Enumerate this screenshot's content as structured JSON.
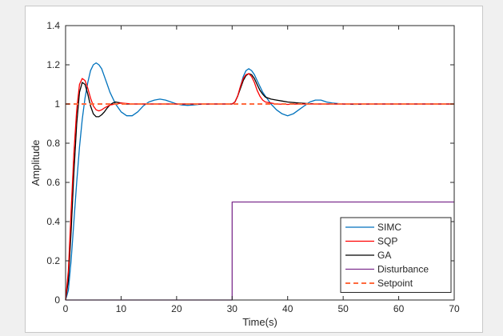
{
  "chart_data": {
    "type": "line",
    "title": "",
    "xlabel": "Time(s)",
    "ylabel": "Amplitude",
    "xlim": [
      0,
      70
    ],
    "ylim": [
      0,
      1.4
    ],
    "xticks": [
      0,
      10,
      20,
      30,
      40,
      50,
      60,
      70
    ],
    "yticks": [
      0,
      0.2,
      0.4,
      0.6,
      0.8,
      1,
      1.2,
      1.4
    ],
    "xtick_labels": [
      "0",
      "10",
      "20",
      "30",
      "40",
      "50",
      "60",
      "70"
    ],
    "ytick_labels": [
      "0",
      "0.2",
      "0.4",
      "0.6",
      "0.8",
      "1",
      "1.2",
      "1.4"
    ],
    "grid": false,
    "legend": {
      "position": "bottom-right"
    },
    "series": [
      {
        "name": "SIMC",
        "color": "#0072bd",
        "style": "solid",
        "x": [
          0,
          0.5,
          1,
          1.5,
          2,
          2.5,
          3,
          3.5,
          4,
          4.5,
          5,
          5.5,
          6,
          6.5,
          7,
          7.5,
          8,
          9,
          10,
          11,
          12,
          13,
          14,
          15,
          16,
          17,
          18,
          19,
          20,
          21,
          22,
          23,
          24,
          26,
          28,
          30,
          30.5,
          31,
          31.5,
          32,
          32.5,
          33,
          33.5,
          34,
          34.5,
          35,
          35.5,
          36,
          37,
          38,
          39,
          40,
          41,
          42,
          43,
          44,
          45,
          46,
          47,
          48,
          50,
          52,
          55,
          60,
          65,
          70
        ],
        "y": [
          0,
          0.05,
          0.2,
          0.4,
          0.6,
          0.78,
          0.92,
          1.03,
          1.11,
          1.17,
          1.2,
          1.21,
          1.2,
          1.18,
          1.14,
          1.1,
          1.06,
          1.0,
          0.96,
          0.94,
          0.94,
          0.96,
          0.99,
          1.01,
          1.02,
          1.025,
          1.02,
          1.01,
          1.0,
          0.995,
          0.993,
          0.995,
          0.998,
          1.0,
          1.0,
          1.0,
          1.01,
          1.04,
          1.09,
          1.14,
          1.17,
          1.18,
          1.17,
          1.15,
          1.12,
          1.09,
          1.06,
          1.04,
          1.0,
          0.97,
          0.95,
          0.94,
          0.95,
          0.97,
          0.99,
          1.01,
          1.02,
          1.02,
          1.01,
          1.005,
          1.0,
          0.998,
          1.0,
          1.0,
          1.0,
          1.0
        ]
      },
      {
        "name": "SQP",
        "color": "#ff0000",
        "style": "solid",
        "x": [
          0,
          0.5,
          1,
          1.5,
          2,
          2.5,
          3,
          3.5,
          4,
          4.5,
          5,
          5.5,
          6,
          6.5,
          7,
          8,
          9,
          10,
          12,
          15,
          20,
          25,
          30,
          30.5,
          31,
          31.5,
          32,
          32.5,
          33,
          33.5,
          34,
          34.5,
          35,
          35.5,
          36,
          37,
          38,
          40,
          42,
          45,
          50,
          55,
          60,
          65,
          70
        ],
        "y": [
          0,
          0.15,
          0.45,
          0.75,
          0.97,
          1.1,
          1.13,
          1.12,
          1.08,
          1.03,
          0.99,
          0.97,
          0.965,
          0.97,
          0.98,
          0.995,
          1.0,
          1.005,
          1.0,
          1.0,
          1.0,
          1.0,
          1.0,
          1.01,
          1.04,
          1.09,
          1.13,
          1.15,
          1.155,
          1.14,
          1.11,
          1.07,
          1.04,
          1.02,
          1.01,
          1.005,
          1.0,
          0.998,
          1.0,
          1.0,
          1.0,
          1.0,
          1.0,
          1.0,
          1.0
        ]
      },
      {
        "name": "GA",
        "color": "#000000",
        "style": "solid",
        "x": [
          0,
          0.5,
          1,
          1.5,
          2,
          2.5,
          3,
          3.5,
          4,
          4.5,
          5,
          5.5,
          6,
          6.5,
          7,
          7.5,
          8,
          8.5,
          9,
          10,
          11,
          12,
          15,
          20,
          25,
          30,
          30.5,
          31,
          31.5,
          32,
          32.5,
          33,
          33.5,
          34,
          34.5,
          35,
          35.5,
          36,
          37,
          38,
          39,
          40,
          42,
          45,
          50,
          55,
          60,
          65,
          70
        ],
        "y": [
          0,
          0.1,
          0.35,
          0.65,
          0.9,
          1.06,
          1.11,
          1.1,
          1.05,
          0.99,
          0.95,
          0.935,
          0.935,
          0.945,
          0.96,
          0.98,
          0.995,
          1.005,
          1.01,
          1.005,
          1.0,
          1.0,
          1.0,
          1.0,
          1.0,
          1.0,
          1.01,
          1.04,
          1.08,
          1.12,
          1.145,
          1.155,
          1.15,
          1.13,
          1.1,
          1.07,
          1.05,
          1.035,
          1.025,
          1.02,
          1.015,
          1.01,
          1.005,
          1.0,
          1.0,
          1.0,
          1.0,
          1.0,
          1.0
        ]
      },
      {
        "name": "Disturbance",
        "color": "#7e2f8e",
        "style": "solid",
        "x": [
          0,
          30,
          30,
          70
        ],
        "y": [
          0,
          0,
          0.5,
          0.5
        ]
      },
      {
        "name": "Setpoint",
        "color": "#ff6a3d",
        "style": "dashed",
        "x": [
          0,
          70
        ],
        "y": [
          1,
          1
        ]
      }
    ]
  }
}
